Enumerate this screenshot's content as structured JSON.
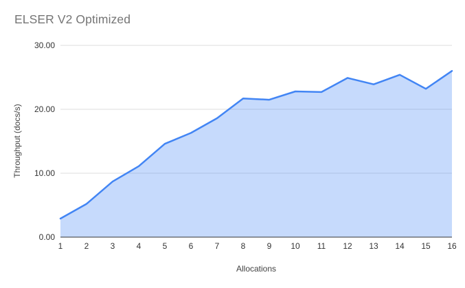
{
  "chart_data": {
    "type": "area",
    "title": "ELSER V2 Optimized",
    "xlabel": "Allocations",
    "ylabel": "Throughput (docs/s)",
    "x": [
      1,
      2,
      3,
      4,
      5,
      6,
      7,
      8,
      9,
      10,
      11,
      12,
      13,
      14,
      15,
      16
    ],
    "values": [
      2.9,
      5.2,
      8.7,
      11.1,
      14.6,
      16.3,
      18.6,
      21.7,
      21.5,
      22.8,
      22.7,
      24.9,
      23.9,
      25.4,
      23.2,
      26.0
    ],
    "series_name": "Throughput (docs/s)",
    "ylim": [
      0,
      30
    ],
    "yticks": [
      0,
      10,
      20,
      30
    ],
    "ytick_labels": [
      "0.00",
      "10.00",
      "20.00",
      "30.00"
    ],
    "xtick_labels": [
      "1",
      "2",
      "3",
      "4",
      "5",
      "6",
      "7",
      "8",
      "9",
      "10",
      "11",
      "12",
      "13",
      "14",
      "15",
      "16"
    ],
    "grid": true,
    "legend_position": "none",
    "colors": {
      "line": "#4285f4",
      "fill": "#4285f4",
      "fill_opacity": 0.3,
      "gridline": "#dddddd",
      "axis_line": "#333333",
      "tick_label": "#333333",
      "axis_title": "#424242",
      "chart_title": "#757575",
      "background": "#ffffff"
    }
  }
}
